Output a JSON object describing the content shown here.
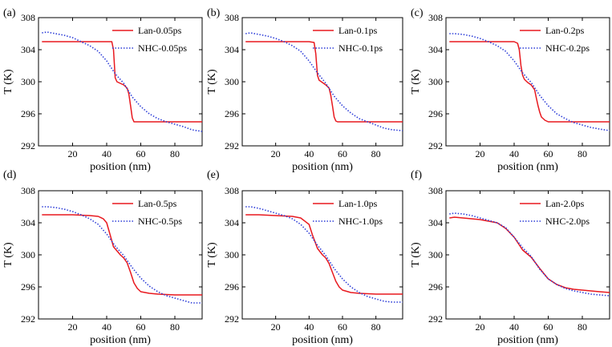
{
  "chart_data": [
    {
      "panel": "(a)",
      "type": "line",
      "xlabel": "position (nm)",
      "ylabel": "T (K)",
      "xlim": [
        0,
        96
      ],
      "ylim": [
        292,
        308
      ],
      "xticks": [
        20,
        40,
        60,
        80
      ],
      "yticks": [
        292,
        296,
        300,
        304,
        308
      ],
      "legend": "top-right",
      "series": [
        {
          "name": "Lan-0.05ps",
          "color": "#e8191f",
          "style": "solid",
          "x": [
            2,
            10,
            20,
            30,
            40,
            43,
            44,
            45,
            46,
            48,
            50,
            52,
            53,
            54,
            55,
            56,
            57,
            60,
            70,
            80,
            90,
            96
          ],
          "y": [
            305.0,
            305.0,
            305.0,
            305.0,
            305.0,
            305.0,
            304.0,
            300.5,
            300.0,
            299.8,
            299.6,
            299.2,
            298.5,
            297.0,
            295.5,
            295.0,
            295.0,
            295.0,
            295.0,
            295.0,
            295.0,
            295.0
          ]
        },
        {
          "name": "NHC-0.05ps",
          "color": "#2f3fd8",
          "style": "dotted",
          "x": [
            2,
            5,
            10,
            15,
            20,
            25,
            30,
            35,
            40,
            45,
            50,
            55,
            60,
            65,
            70,
            75,
            80,
            85,
            90,
            96
          ],
          "y": [
            306.1,
            306.2,
            306.0,
            305.8,
            305.5,
            305.0,
            304.5,
            303.8,
            302.6,
            301.0,
            299.8,
            298.1,
            296.9,
            296.0,
            295.4,
            295.0,
            294.7,
            294.4,
            294.0,
            293.8
          ]
        }
      ]
    },
    {
      "panel": "(b)",
      "type": "line",
      "xlabel": "position (nm)",
      "ylabel": "T (K)",
      "xlim": [
        0,
        96
      ],
      "ylim": [
        292,
        308
      ],
      "xticks": [
        20,
        40,
        60,
        80
      ],
      "yticks": [
        292,
        296,
        300,
        304,
        308
      ],
      "legend": "top-right",
      "series": [
        {
          "name": "Lan-0.1ps",
          "color": "#e8191f",
          "style": "solid",
          "x": [
            2,
            10,
            20,
            30,
            40,
            43,
            44,
            45,
            46,
            48,
            50,
            52,
            53,
            54,
            55,
            56,
            57,
            60,
            70,
            80,
            90,
            96
          ],
          "y": [
            305.0,
            305.0,
            305.0,
            305.0,
            305.0,
            304.9,
            303.5,
            300.8,
            300.2,
            299.9,
            299.6,
            299.2,
            298.3,
            297.0,
            295.6,
            295.1,
            295.0,
            295.0,
            295.0,
            295.0,
            295.0,
            295.0
          ]
        },
        {
          "name": "NHC-0.1ps",
          "color": "#2f3fd8",
          "style": "dotted",
          "x": [
            2,
            5,
            10,
            15,
            20,
            25,
            30,
            35,
            40,
            45,
            50,
            55,
            60,
            65,
            70,
            75,
            80,
            85,
            90,
            96
          ],
          "y": [
            306.0,
            306.1,
            305.9,
            305.7,
            305.4,
            305.0,
            304.5,
            303.8,
            302.6,
            301.1,
            299.8,
            298.2,
            297.0,
            296.1,
            295.4,
            295.0,
            294.6,
            294.2,
            294.0,
            293.9
          ]
        }
      ]
    },
    {
      "panel": "(c)",
      "type": "line",
      "xlabel": "position (nm)",
      "ylabel": "T (K)",
      "xlim": [
        0,
        96
      ],
      "ylim": [
        292,
        308
      ],
      "xticks": [
        20,
        40,
        60,
        80
      ],
      "yticks": [
        292,
        296,
        300,
        304,
        308
      ],
      "legend": "top-right",
      "series": [
        {
          "name": "Lan-0.2ps",
          "color": "#e8191f",
          "style": "solid",
          "x": [
            2,
            10,
            20,
            30,
            40,
            42,
            43,
            44,
            45,
            46,
            48,
            50,
            52,
            53,
            54,
            55,
            56,
            58,
            60,
            70,
            80,
            90,
            96
          ],
          "y": [
            305.0,
            305.0,
            305.0,
            305.0,
            305.0,
            304.8,
            304.0,
            302.0,
            300.8,
            300.3,
            299.9,
            299.6,
            299.0,
            298.0,
            297.0,
            296.2,
            295.6,
            295.2,
            295.0,
            295.0,
            295.0,
            295.0,
            295.0
          ]
        },
        {
          "name": "NHC-0.2ps",
          "color": "#2f3fd8",
          "style": "dotted",
          "x": [
            2,
            5,
            10,
            15,
            20,
            25,
            30,
            35,
            40,
            45,
            50,
            55,
            60,
            65,
            70,
            75,
            80,
            85,
            90,
            96
          ],
          "y": [
            306.0,
            306.0,
            305.9,
            305.7,
            305.4,
            305.0,
            304.5,
            303.8,
            302.6,
            301.1,
            299.9,
            298.3,
            297.0,
            296.0,
            295.4,
            294.9,
            294.6,
            294.3,
            294.1,
            293.9
          ]
        }
      ]
    },
    {
      "panel": "(d)",
      "type": "line",
      "xlabel": "position (nm)",
      "ylabel": "T (K)",
      "xlim": [
        0,
        96
      ],
      "ylim": [
        292,
        308
      ],
      "xticks": [
        20,
        40,
        60,
        80
      ],
      "yticks": [
        292,
        296,
        300,
        304,
        308
      ],
      "legend": "top-right",
      "series": [
        {
          "name": "Lan-0.5ps",
          "color": "#e8191f",
          "style": "solid",
          "x": [
            2,
            10,
            20,
            30,
            35,
            38,
            40,
            42,
            44,
            46,
            48,
            50,
            52,
            54,
            56,
            58,
            60,
            65,
            70,
            80,
            90,
            96
          ],
          "y": [
            305.0,
            305.0,
            305.0,
            304.9,
            304.8,
            304.5,
            304.0,
            302.5,
            301.0,
            300.5,
            300.0,
            299.6,
            299.0,
            297.8,
            296.5,
            295.8,
            295.4,
            295.2,
            295.1,
            295.0,
            295.0,
            295.0
          ]
        },
        {
          "name": "NHC-0.5ps",
          "color": "#2f3fd8",
          "style": "dotted",
          "x": [
            2,
            5,
            10,
            15,
            20,
            25,
            30,
            35,
            40,
            45,
            50,
            55,
            60,
            65,
            70,
            75,
            80,
            85,
            90,
            96
          ],
          "y": [
            306.0,
            306.0,
            305.9,
            305.7,
            305.4,
            305.0,
            304.5,
            303.8,
            302.6,
            301.1,
            299.9,
            298.4,
            297.1,
            296.1,
            295.4,
            294.9,
            294.6,
            294.3,
            294.0,
            294.0
          ]
        }
      ]
    },
    {
      "panel": "(e)",
      "type": "line",
      "xlabel": "position (nm)",
      "ylabel": "T (K)",
      "xlim": [
        0,
        96
      ],
      "ylim": [
        292,
        308
      ],
      "xticks": [
        20,
        40,
        60,
        80
      ],
      "yticks": [
        292,
        296,
        300,
        304,
        308
      ],
      "legend": "top-right",
      "series": [
        {
          "name": "Lan-1.0ps",
          "color": "#e8191f",
          "style": "solid",
          "x": [
            2,
            10,
            20,
            30,
            35,
            40,
            42,
            45,
            48,
            50,
            52,
            54,
            56,
            58,
            60,
            65,
            70,
            80,
            90,
            96
          ],
          "y": [
            305.0,
            305.0,
            304.9,
            304.8,
            304.6,
            303.8,
            302.5,
            300.8,
            300.0,
            299.6,
            298.9,
            297.8,
            296.7,
            296.0,
            295.6,
            295.3,
            295.2,
            295.1,
            295.1,
            295.1
          ]
        },
        {
          "name": "NHC-1.0ps",
          "color": "#2f3fd8",
          "style": "dotted",
          "x": [
            2,
            5,
            10,
            15,
            20,
            25,
            30,
            35,
            40,
            45,
            50,
            55,
            60,
            65,
            70,
            75,
            80,
            85,
            90,
            96
          ],
          "y": [
            306.0,
            306.0,
            305.8,
            305.5,
            305.2,
            304.9,
            304.5,
            303.8,
            302.7,
            301.2,
            299.9,
            298.3,
            297.0,
            296.0,
            295.3,
            294.8,
            294.5,
            294.2,
            294.1,
            294.1
          ]
        }
      ]
    },
    {
      "panel": "(f)",
      "type": "line",
      "xlabel": "position (nm)",
      "ylabel": "T (K)",
      "xlim": [
        0,
        96
      ],
      "ylim": [
        292,
        308
      ],
      "xticks": [
        20,
        40,
        60,
        80
      ],
      "yticks": [
        292,
        296,
        300,
        304,
        308
      ],
      "legend": "top-right",
      "series": [
        {
          "name": "Lan-2.0ps",
          "color": "#e8191f",
          "style": "solid",
          "x": [
            2,
            5,
            10,
            15,
            20,
            25,
            30,
            35,
            40,
            45,
            50,
            55,
            60,
            65,
            70,
            75,
            80,
            85,
            90,
            96
          ],
          "y": [
            304.6,
            304.7,
            304.6,
            304.5,
            304.4,
            304.2,
            304.0,
            303.3,
            302.2,
            300.6,
            299.7,
            298.3,
            297.0,
            296.3,
            295.9,
            295.7,
            295.6,
            295.5,
            295.4,
            295.3
          ]
        },
        {
          "name": "NHC-2.0ps",
          "color": "#2f3fd8",
          "style": "dotted",
          "x": [
            2,
            5,
            10,
            15,
            20,
            25,
            30,
            35,
            40,
            45,
            50,
            55,
            60,
            65,
            70,
            75,
            80,
            85,
            90,
            96
          ],
          "y": [
            305.1,
            305.2,
            305.1,
            304.9,
            304.6,
            304.3,
            304.0,
            303.4,
            302.2,
            300.9,
            299.8,
            298.2,
            297.0,
            296.3,
            295.8,
            295.5,
            295.3,
            295.1,
            295.0,
            294.9
          ]
        }
      ]
    }
  ]
}
